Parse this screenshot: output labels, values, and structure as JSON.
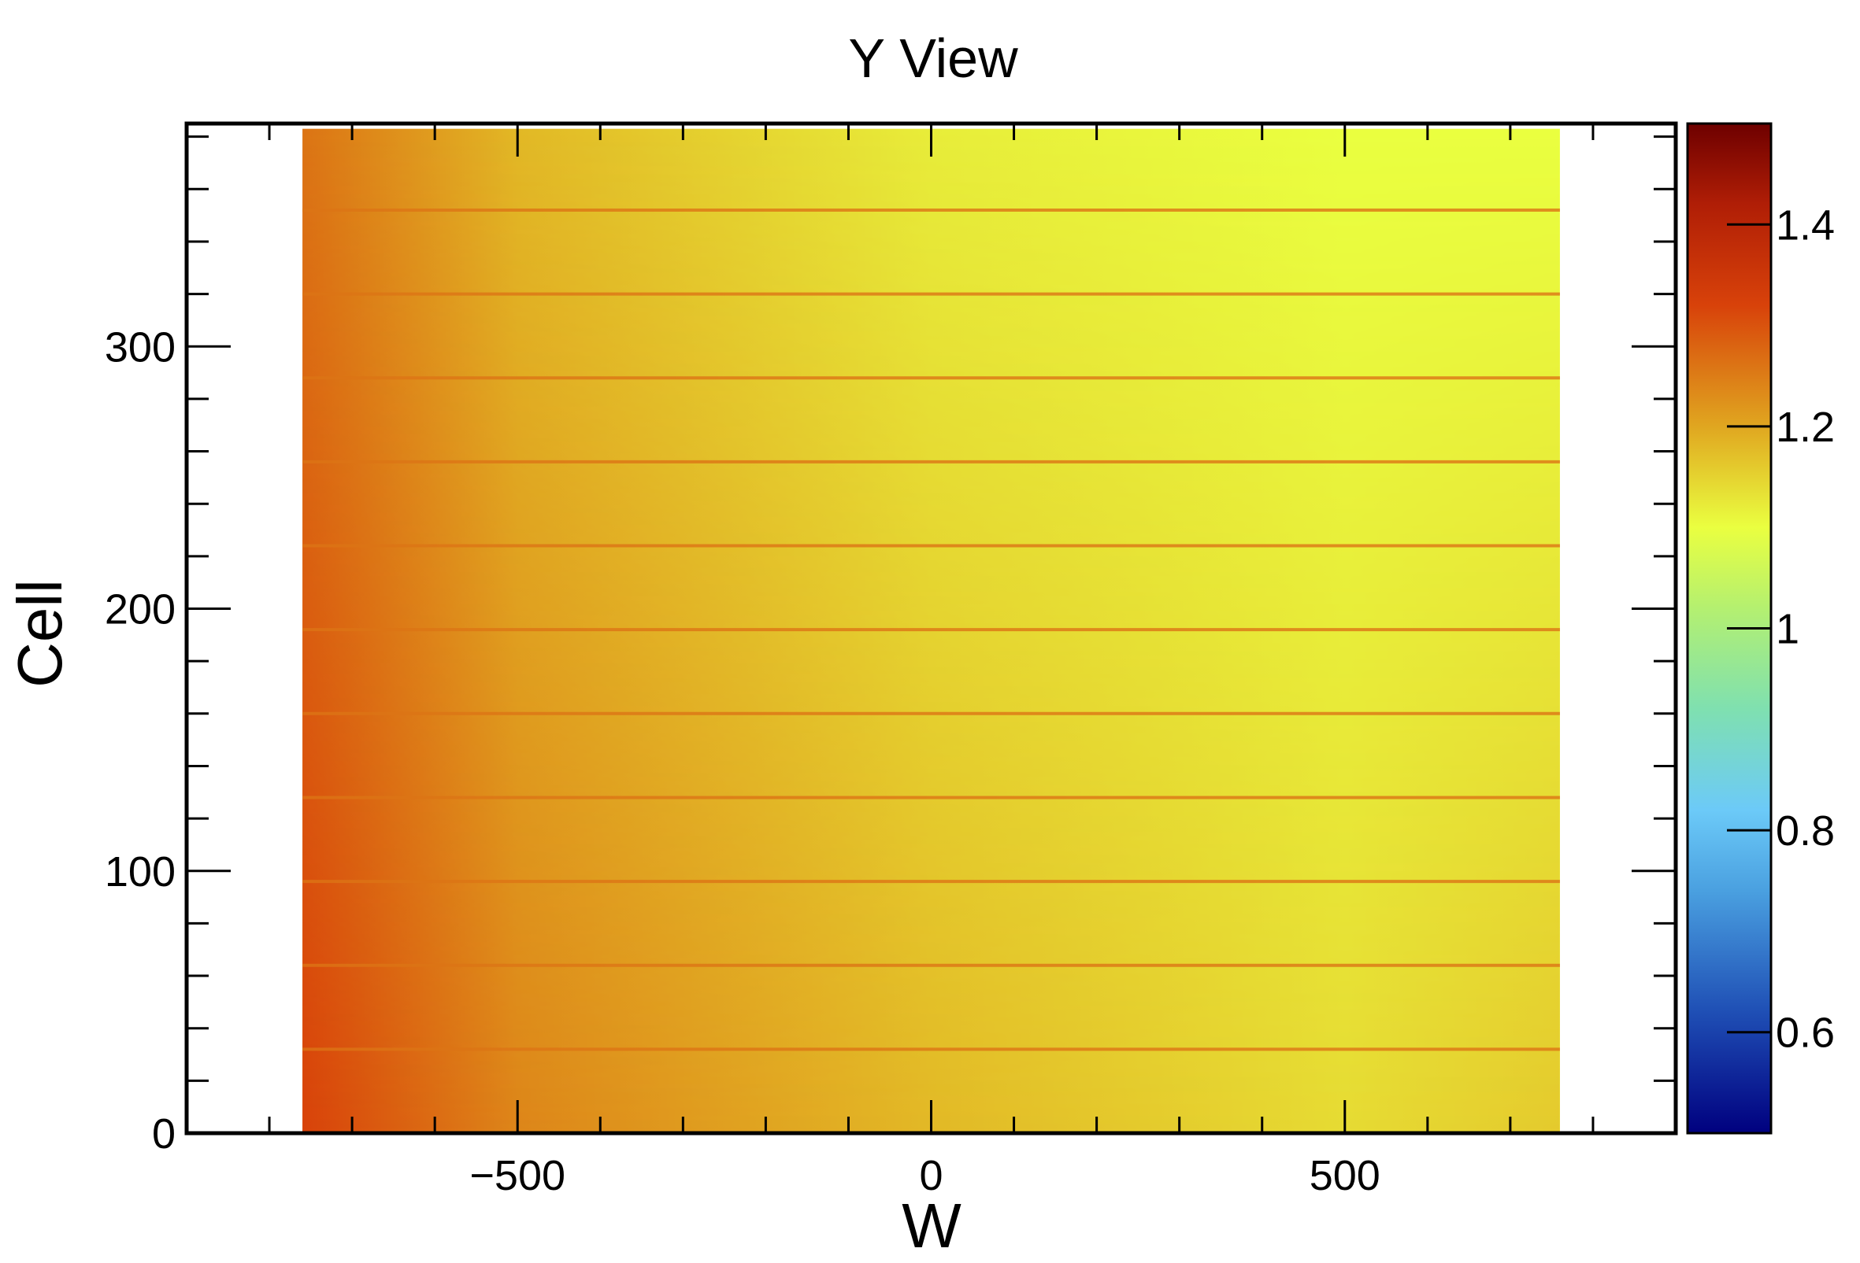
{
  "chart_data": {
    "type": "heatmap",
    "title": "Y View",
    "xlabel": "W",
    "ylabel": "Cell",
    "xlim": [
      -900,
      900
    ],
    "ylim": [
      0,
      385
    ],
    "data_x_range": [
      -760,
      760
    ],
    "data_y_range": [
      0,
      383
    ],
    "x_ticks": [
      {
        "value": -500,
        "label": "−500"
      },
      {
        "value": 0,
        "label": "0"
      },
      {
        "value": 500,
        "label": "500"
      }
    ],
    "y_ticks": [
      {
        "value": 0,
        "label": "0"
      },
      {
        "value": 100,
        "label": "100"
      },
      {
        "value": 200,
        "label": "200"
      },
      {
        "value": 300,
        "label": "300"
      }
    ],
    "colorbar": {
      "range": [
        0.5,
        1.5
      ],
      "ticks": [
        {
          "value": 0.6,
          "label": "0.6"
        },
        {
          "value": 0.8,
          "label": "0.8"
        },
        {
          "value": 1.0,
          "label": "1"
        },
        {
          "value": 1.2,
          "label": "1.2"
        },
        {
          "value": 1.4,
          "label": "1.4"
        }
      ],
      "stops": [
        {
          "value": 0.5,
          "color": "#00007f"
        },
        {
          "value": 0.62,
          "color": "#1f4fb5"
        },
        {
          "value": 0.74,
          "color": "#4aa0e0"
        },
        {
          "value": 0.82,
          "color": "#6ccaf8"
        },
        {
          "value": 0.92,
          "color": "#7fe0b0"
        },
        {
          "value": 1.02,
          "color": "#b4f070"
        },
        {
          "value": 1.1,
          "color": "#eaff40"
        },
        {
          "value": 1.2,
          "color": "#e0a620"
        },
        {
          "value": 1.32,
          "color": "#d8420a"
        },
        {
          "value": 1.42,
          "color": "#b01e06"
        },
        {
          "value": 1.5,
          "color": "#6e0000"
        }
      ]
    },
    "module_boundaries_cell": [
      32,
      64,
      96,
      128,
      160,
      192,
      224,
      256,
      288,
      320,
      352
    ],
    "value_gradient": {
      "w_points": [
        -760,
        -500,
        0,
        500,
        760
      ],
      "values_bottom": [
        1.32,
        1.24,
        1.18,
        1.14,
        1.16
      ],
      "values_top": [
        1.26,
        1.18,
        1.12,
        1.1,
        1.1
      ],
      "boundary_value": 1.26
    }
  }
}
